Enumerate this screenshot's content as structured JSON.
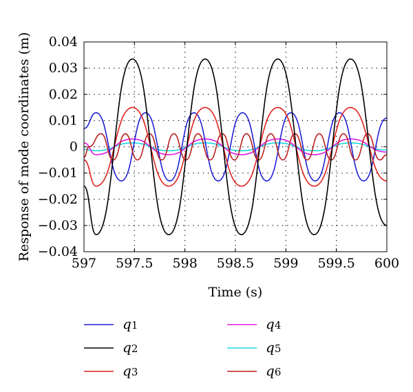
{
  "chart_data": {
    "type": "line",
    "title": "",
    "xlabel": "Time (s)",
    "ylabel": "Response of mode coordinates (m)",
    "xlim": [
      597,
      600
    ],
    "ylim": [
      -0.04,
      0.04
    ],
    "xticks": [
      597,
      597.5,
      598,
      598.5,
      599,
      599.5,
      600
    ],
    "xtick_labels": [
      "597",
      "597.5",
      "598",
      "598.5",
      "599",
      "599.5",
      "600"
    ],
    "yticks": [
      -0.04,
      -0.03,
      -0.02,
      -0.01,
      0,
      0.01,
      0.02,
      0.03,
      0.04
    ],
    "ytick_labels": [
      "−0.04",
      "−0.03",
      "−0.02",
      "−0.01",
      "0",
      "0.01",
      "0.02",
      "0.03",
      "0.04"
    ],
    "grid": true,
    "legend_position": "below plot, two columns",
    "series": [
      {
        "name": "q1",
        "color": "#1f1fd6",
        "x": [
          597.0,
          597.12,
          597.37,
          597.61,
          597.85,
          598.09,
          598.33,
          598.57,
          598.81,
          599.05,
          599.29,
          599.53,
          599.77,
          600.0
        ],
        "y": [
          0.007,
          0.013,
          -0.013,
          0.013,
          -0.013,
          0.013,
          -0.013,
          0.013,
          -0.013,
          0.013,
          -0.013,
          0.013,
          -0.013,
          0.011
        ]
      },
      {
        "name": "q2",
        "color": "#000000",
        "x": [
          597.0,
          597.12,
          597.48,
          597.84,
          598.2,
          598.56,
          598.92,
          599.28,
          599.64,
          600.0
        ],
        "y": [
          -0.015,
          -0.0335,
          0.0335,
          -0.0335,
          0.0335,
          -0.0335,
          0.0335,
          -0.0335,
          0.0335,
          -0.03
        ]
      },
      {
        "name": "q3",
        "color": "#e0201c",
        "x": [
          597.0,
          597.12,
          597.48,
          597.84,
          598.2,
          598.56,
          598.92,
          599.28,
          599.64,
          600.0
        ],
        "y": [
          -0.005,
          -0.015,
          0.015,
          -0.015,
          0.015,
          -0.015,
          0.015,
          -0.015,
          0.015,
          -0.013
        ]
      },
      {
        "name": "q4",
        "color": "#e01ce0",
        "x": [
          597.0,
          597.12,
          597.48,
          597.84,
          598.2,
          598.56,
          598.92,
          599.28,
          599.64,
          600.0
        ],
        "y": [
          0.0015,
          -0.003,
          0.003,
          -0.003,
          0.003,
          -0.003,
          0.003,
          -0.003,
          0.003,
          -0.002
        ]
      },
      {
        "name": "q5",
        "color": "#1cd8e0",
        "x": [
          597.0,
          597.12,
          597.48,
          597.84,
          598.2,
          598.56,
          598.92,
          599.28,
          599.64,
          600.0
        ],
        "y": [
          -0.001,
          -0.0015,
          0.0015,
          -0.0015,
          0.0015,
          -0.0015,
          0.0015,
          -0.0015,
          0.0015,
          -0.0012
        ]
      },
      {
        "name": "q6",
        "color": "#b81c1c",
        "x": [
          597.0,
          597.05,
          597.17,
          597.29,
          597.41,
          597.53,
          597.65,
          597.77,
          597.89,
          598.01,
          598.13,
          598.25,
          598.37,
          598.49,
          598.61,
          598.73,
          598.85,
          598.97,
          599.09,
          599.21,
          599.33,
          599.45,
          599.57,
          599.69,
          599.81,
          599.93,
          600.0
        ],
        "y": [
          -0.004,
          0.0,
          0.005,
          -0.005,
          0.005,
          -0.005,
          0.005,
          -0.005,
          0.005,
          -0.005,
          0.005,
          -0.005,
          0.005,
          -0.005,
          0.005,
          -0.005,
          0.005,
          -0.005,
          0.005,
          -0.005,
          0.005,
          -0.005,
          0.005,
          -0.005,
          0.005,
          -0.005,
          -0.003
        ]
      }
    ]
  }
}
